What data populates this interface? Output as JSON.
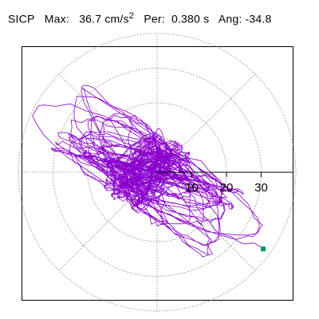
{
  "header": {
    "station": "SICP",
    "max_label": "Max:",
    "max_value": "36.7",
    "max_unit": "cm/s",
    "max_unit_exp": "2",
    "per_label": "Per:",
    "per_value": "0.380 s",
    "ang_label": "Ang:",
    "ang_value": "-34.8"
  },
  "chart_data": {
    "type": "line",
    "description_of_axes": "polar response orbit",
    "radial_ticks": [
      10,
      20,
      30
    ],
    "radial_tick_labels": [
      "10",
      "20",
      "30"
    ],
    "rmax": 40,
    "max_value": 36.7,
    "angle_deg": -34.8,
    "grid": true,
    "angular_grid_step_deg": 45,
    "series": [
      {
        "color": "#8a00cc",
        "end_point": {
          "x": 30.6,
          "y": -22.1
        }
      }
    ],
    "end_marker_color": "#009966"
  },
  "colors": {
    "trace": "#8a00cc",
    "marker": "#009966",
    "grid": "#808080",
    "frame": "#000000"
  }
}
